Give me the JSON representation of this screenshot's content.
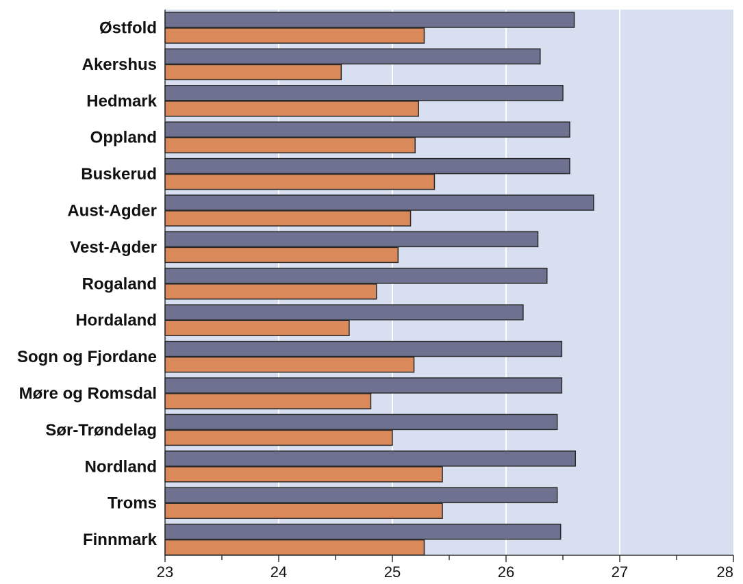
{
  "chart_data": {
    "type": "bar",
    "orientation": "horizontal",
    "categories": [
      "Østfold",
      "Akershus",
      "Hedmark",
      "Oppland",
      "Buskerud",
      "Aust-Agder",
      "Vest-Agder",
      "Rogaland",
      "Hordaland",
      "Sogn og Fjordane",
      "Møre og Romsdal",
      "Sør-Trøndelag",
      "Nordland",
      "Troms",
      "Finnmark"
    ],
    "series": [
      {
        "color": "#6f7191",
        "values": [
          26.6,
          26.3,
          26.5,
          26.56,
          26.56,
          26.77,
          26.28,
          26.36,
          26.15,
          26.49,
          26.49,
          26.45,
          26.61,
          26.45,
          26.48
        ]
      },
      {
        "color": "#d9895a",
        "values": [
          25.28,
          24.55,
          25.23,
          25.2,
          25.37,
          25.16,
          25.05,
          24.86,
          24.62,
          25.19,
          24.81,
          25.0,
          25.44,
          25.44,
          25.28
        ]
      }
    ],
    "xlim": [
      23,
      28
    ],
    "xticks": [
      "23",
      "24",
      "25",
      "26",
      "27",
      "28"
    ],
    "title": "",
    "xlabel": "",
    "ylabel": "",
    "grid": "vertical",
    "legend": "none",
    "plot_background": "#d8dff0"
  }
}
